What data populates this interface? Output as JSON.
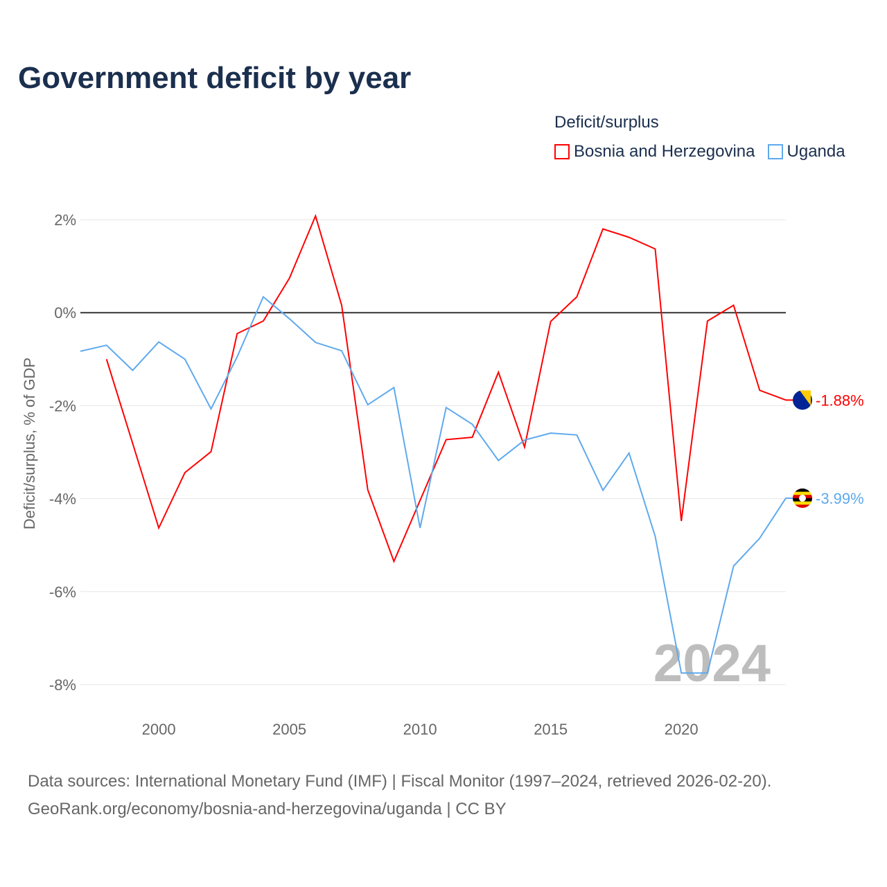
{
  "title": "Government deficit by year",
  "legend": {
    "title": "Deficit/surplus",
    "items": [
      "Bosnia and Herzegovina",
      "Uganda"
    ]
  },
  "watermark_year": "2024",
  "source_line1": "Data sources: International Monetary Fund (IMF) | Fiscal Monitor (1997–2024, retrieved 2026-02-20).",
  "source_line2": "GeoRank.org/economy/bosnia-and-herzegovina/uganda | CC BY",
  "chart_data": {
    "type": "line",
    "title": "Government deficit by year",
    "xlabel": "",
    "ylabel": "Deficit/surplus, % of GDP",
    "xlim": [
      1997,
      2024
    ],
    "ylim": [
      -8,
      2
    ],
    "xticks": [
      2000,
      2005,
      2010,
      2015,
      2020
    ],
    "yticks": [
      2,
      0,
      -2,
      -4,
      -6,
      -8
    ],
    "ytick_labels": [
      "2%",
      "0%",
      "-2%",
      "-4%",
      "-6%",
      "-8%"
    ],
    "grid": true,
    "legend_position": "top-right",
    "series": [
      {
        "name": "Bosnia and Herzegovina",
        "color": "#ff0000",
        "end_label": "-1.88%",
        "x": [
          1998,
          1999,
          2000,
          2001,
          2002,
          2003,
          2004,
          2005,
          2006,
          2007,
          2008,
          2009,
          2010,
          2011,
          2012,
          2013,
          2014,
          2015,
          2016,
          2017,
          2018,
          2019,
          2020,
          2021,
          2022,
          2023,
          2024
        ],
        "values": [
          -1.0,
          -2.81,
          -4.63,
          -3.44,
          -2.99,
          -0.45,
          -0.18,
          0.74,
          2.08,
          0.16,
          -3.81,
          -5.35,
          -4.04,
          -2.73,
          -2.68,
          -1.28,
          -2.89,
          -0.19,
          0.34,
          1.8,
          1.62,
          1.37,
          -4.48,
          -0.18,
          0.16,
          -1.67,
          -1.88
        ]
      },
      {
        "name": "Uganda",
        "color": "#5ea9ee",
        "end_label": "-3.99%",
        "x": [
          1997,
          1998,
          1999,
          2000,
          2001,
          2002,
          2003,
          2004,
          2005,
          2006,
          2007,
          2008,
          2009,
          2010,
          2011,
          2012,
          2013,
          2014,
          2015,
          2016,
          2017,
          2018,
          2019,
          2020,
          2021,
          2022,
          2023,
          2024
        ],
        "values": [
          -0.83,
          -0.7,
          -1.24,
          -0.63,
          -1.0,
          -2.07,
          -0.95,
          0.34,
          -0.13,
          -0.64,
          -0.82,
          -1.98,
          -1.61,
          -4.63,
          -2.04,
          -2.4,
          -3.18,
          -2.74,
          -2.59,
          -2.63,
          -3.82,
          -3.02,
          -4.81,
          -7.75,
          -7.75,
          -5.45,
          -4.85,
          -3.99
        ]
      }
    ]
  }
}
